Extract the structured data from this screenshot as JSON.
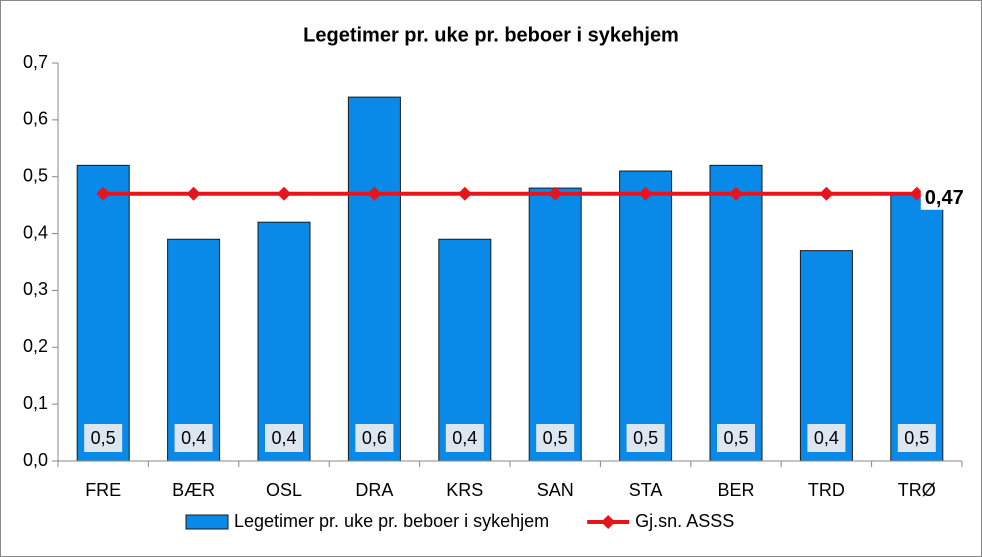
{
  "chart_data": {
    "type": "bar",
    "title": "Legetimer pr. uke pr. beboer i sykehjem",
    "categories": [
      "FRE",
      "BÆR",
      "OSL",
      "DRA",
      "KRS",
      "SAN",
      "STA",
      "BER",
      "TRD",
      "TRØ"
    ],
    "series": [
      {
        "name": "Legetimer pr. uke pr. beboer i sykehjem",
        "type": "bar",
        "color": "#0a8ae8",
        "values": [
          0.52,
          0.39,
          0.42,
          0.64,
          0.39,
          0.48,
          0.51,
          0.52,
          0.37,
          0.47
        ],
        "value_labels": [
          "0,5",
          "0,4",
          "0,4",
          "0,6",
          "0,4",
          "0,5",
          "0,5",
          "0,5",
          "0,4",
          "0,5"
        ]
      },
      {
        "name": "Gj.sn. ASSS",
        "type": "line",
        "color": "#e8141b",
        "values": [
          0.47,
          0.47,
          0.47,
          0.47,
          0.47,
          0.47,
          0.47,
          0.47,
          0.47,
          0.47
        ],
        "value_labels": [
          null,
          null,
          null,
          null,
          null,
          null,
          null,
          null,
          null,
          "0,47"
        ]
      }
    ],
    "ylim": [
      0,
      0.7
    ],
    "yticks": [
      {
        "value": 0,
        "label": "0,0"
      },
      {
        "value": 0.1,
        "label": "0,1"
      },
      {
        "value": 0.2,
        "label": "0,2"
      },
      {
        "value": 0.3,
        "label": "0,3"
      },
      {
        "value": 0.4,
        "label": "0,4"
      },
      {
        "value": 0.5,
        "label": "0,5"
      },
      {
        "value": 0.6,
        "label": "0,6"
      },
      {
        "value": 0.7,
        "label": "0,7"
      }
    ],
    "grid": false,
    "legend": "bottom"
  }
}
